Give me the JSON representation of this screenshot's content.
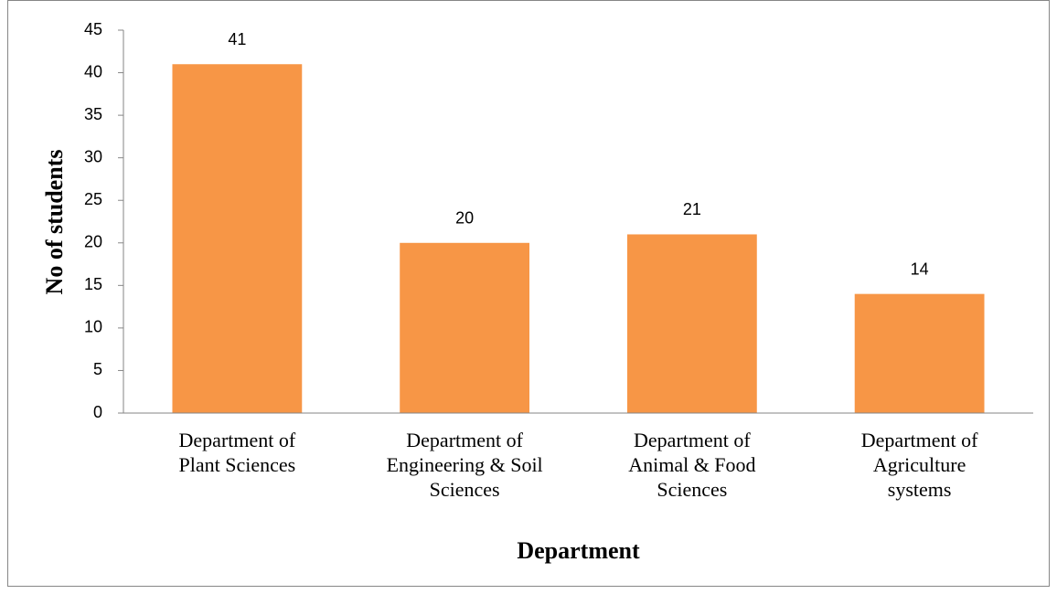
{
  "chart_data": {
    "type": "bar",
    "x_label": "Department",
    "y_label": "No of students",
    "categories": [
      "Department of Plant Sciences",
      "Department of Engineering & Soil Sciences",
      "Department of Animal & Food Sciences",
      "Department of Agriculture systems"
    ],
    "values": [
      41,
      20,
      21,
      14
    ],
    "color": "#f79646",
    "ylim": [
      0,
      45
    ],
    "yticks": [
      0,
      5,
      10,
      15,
      20,
      25,
      30,
      35,
      40,
      45
    ],
    "grid": false
  }
}
